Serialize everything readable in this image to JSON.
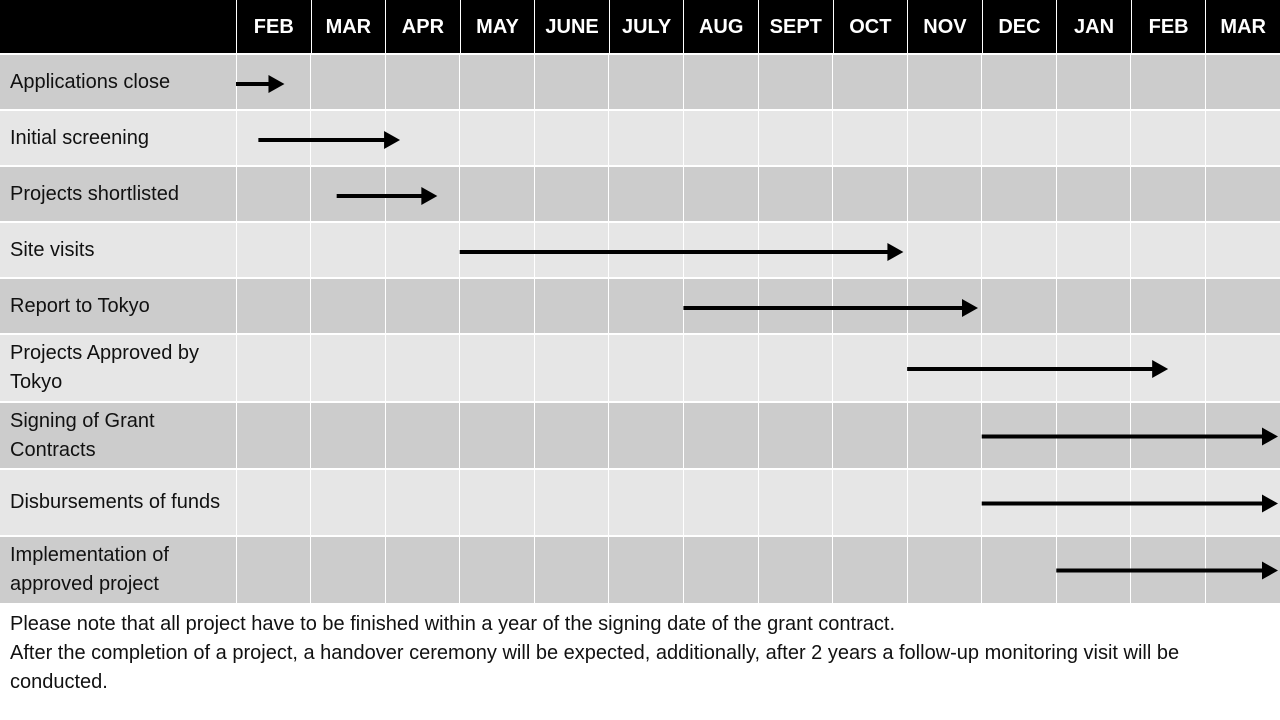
{
  "chart_data": {
    "type": "gantt",
    "months": [
      "FEB",
      "MAR",
      "APR",
      "MAY",
      "JUNE",
      "JULY",
      "AUG",
      "SEPT",
      "OCT",
      "NOV",
      "DEC",
      "JAN",
      "FEB",
      "MAR"
    ],
    "tasks": [
      {
        "label": "Applications close",
        "start": 0.0,
        "end": 0.65
      },
      {
        "label": "Initial screening",
        "start": 0.3,
        "end": 2.2
      },
      {
        "label": "Projects shortlisted",
        "start": 1.35,
        "end": 2.7
      },
      {
        "label": "Site visits",
        "start": 3.0,
        "end": 8.95
      },
      {
        "label": "Report to Tokyo",
        "start": 6.0,
        "end": 9.95
      },
      {
        "label": "Projects Approved by Tokyo",
        "start": 9.0,
        "end": 12.5
      },
      {
        "label": "Signing of Grant Contracts",
        "start": 10.0,
        "end": 14.0
      },
      {
        "label": "Disbursements of funds",
        "start": 10.0,
        "end": 14.0
      },
      {
        "label": "Implementation of approved project",
        "start": 11.0,
        "end": 14.0
      }
    ],
    "colors": {
      "header_bg": "#000000",
      "header_text": "#ffffff",
      "row_dark": "#cccccc",
      "row_light": "#e6e6e6",
      "arrow": "#000000"
    }
  },
  "notes": {
    "line1": "Please note that all project have to be finished within a year of the signing date of the grant contract.",
    "line2": "After the completion of a project, a handover ceremony will be expected, additionally, after 2 years a follow-up monitoring visit will be conducted."
  }
}
